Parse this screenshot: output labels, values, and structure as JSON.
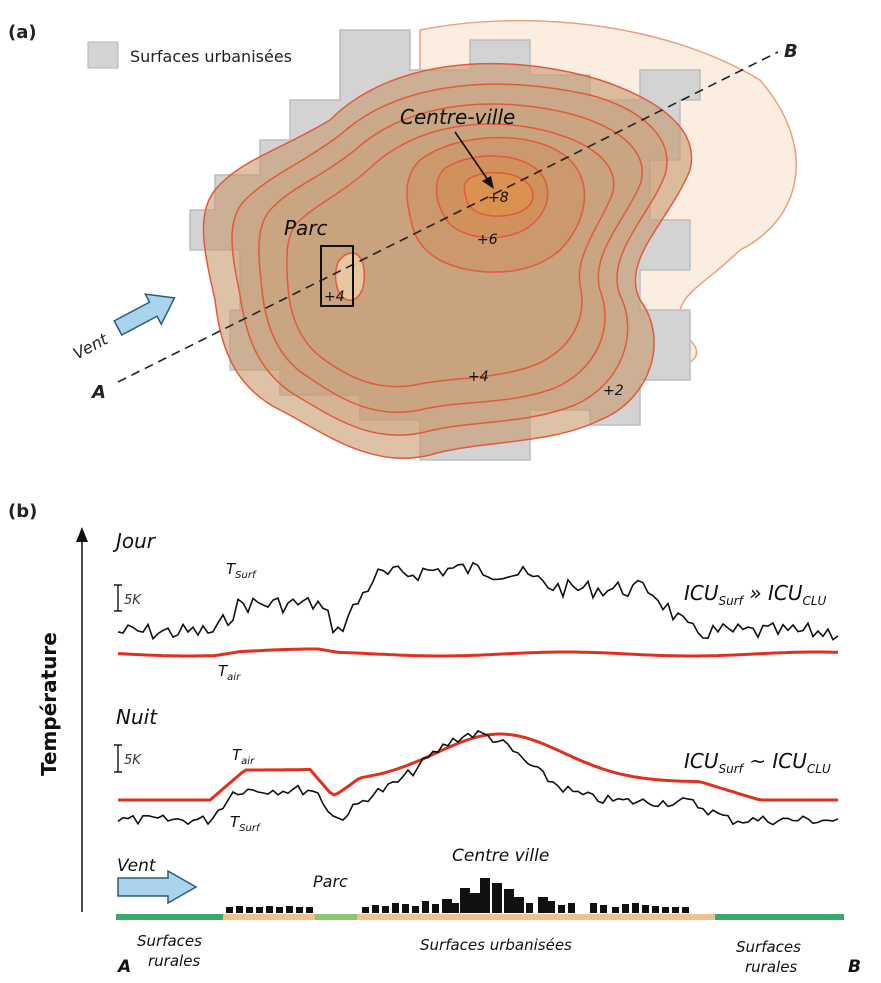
{
  "panel_a": {
    "label": "(a)",
    "legend_label": "Surfaces urbanisées",
    "city_center_label": "Centre-ville",
    "park_label": "Parc",
    "wind_label": "Vent",
    "point_a": "A",
    "point_b": "B",
    "isotherm_labels": {
      "center": "+8",
      "inner": "+6",
      "park": "+4",
      "outer": "+4",
      "edge": "+2"
    }
  },
  "panel_b": {
    "label": "(b)",
    "y_axis_label": "Température",
    "day_label": "Jour",
    "night_label": "Nuit",
    "scale_label_day": "5K",
    "scale_label_night": "5K",
    "t_surf_base": "T",
    "t_surf_sub": "Surf",
    "t_air_base": "T",
    "t_air_sub": "air",
    "icu_base": "ICU",
    "icu_surf_sub": "Surf",
    "icu_clu_sub": "CLU",
    "day_relation": "»",
    "night_relation": "~",
    "wind_label": "Vent",
    "park_label": "Parc",
    "city_center_label": "Centre ville",
    "rural_left_line1": "Surfaces",
    "rural_left_line2": "rurales",
    "urban_label": "Surfaces urbanisées",
    "rural_right_line1": "Surfaces",
    "rural_right_line2": "rurales",
    "point_a": "A",
    "point_b": "B"
  },
  "colors": {
    "isotherm": "#e05a3c",
    "urban_fill": "#d3d3d3",
    "heat_fill": "#c89a6e",
    "t_air": "#e0301e",
    "t_surf": "#111111",
    "wind_arrow": "#a8d4ee",
    "rural_bar": "#3aa86b",
    "urban_bar": "#f0c090",
    "park_bar": "#8cc66a"
  }
}
